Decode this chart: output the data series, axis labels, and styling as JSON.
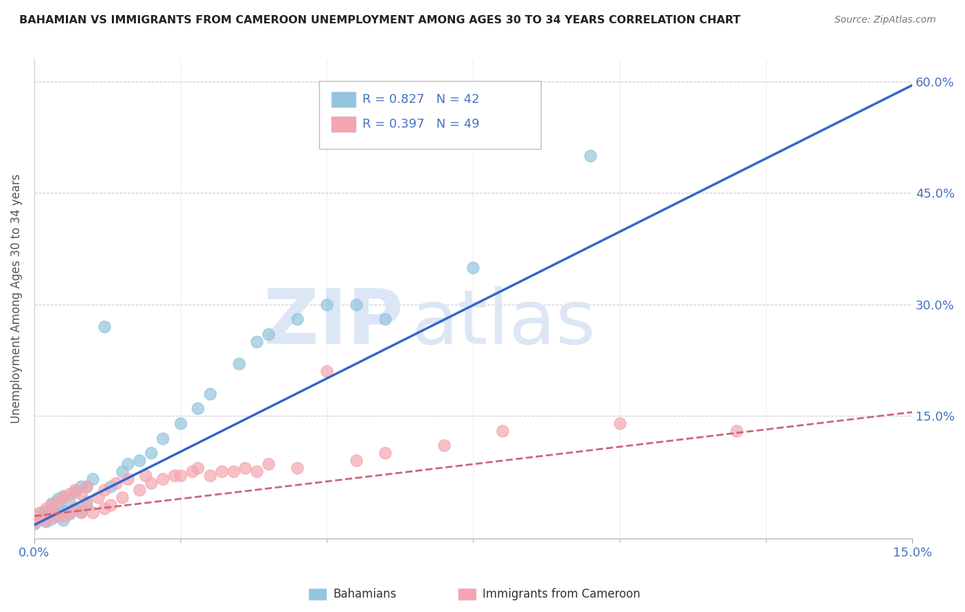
{
  "title": "BAHAMIAN VS IMMIGRANTS FROM CAMEROON UNEMPLOYMENT AMONG AGES 30 TO 34 YEARS CORRELATION CHART",
  "source": "Source: ZipAtlas.com",
  "ylabel": "Unemployment Among Ages 30 to 34 years",
  "right_yticks": [
    0.0,
    0.15,
    0.3,
    0.45,
    0.6
  ],
  "right_yticklabels": [
    "",
    "15.0%",
    "30.0%",
    "45.0%",
    "60.0%"
  ],
  "xmin": 0.0,
  "xmax": 0.15,
  "ymin": -0.015,
  "ymax": 0.63,
  "bahamians_color": "#92c5de",
  "cameroon_color": "#f4a6b0",
  "blue_line_color": "#3366cc",
  "pink_line_color": "#cc6677",
  "legend_R1": "R = 0.827",
  "legend_N1": "N = 42",
  "legend_R2": "R = 0.397",
  "legend_N2": "N = 49",
  "legend_label1": "Bahamians",
  "legend_label2": "Immigrants from Cameroon",
  "watermark": "ZIPatlas",
  "bahamians_x": [
    0.0,
    0.001,
    0.001,
    0.002,
    0.002,
    0.003,
    0.003,
    0.003,
    0.004,
    0.004,
    0.004,
    0.005,
    0.005,
    0.005,
    0.006,
    0.006,
    0.007,
    0.007,
    0.008,
    0.008,
    0.009,
    0.009,
    0.01,
    0.012,
    0.013,
    0.015,
    0.016,
    0.018,
    0.02,
    0.022,
    0.025,
    0.028,
    0.03,
    0.035,
    0.038,
    0.04,
    0.045,
    0.05,
    0.055,
    0.06,
    0.075,
    0.095
  ],
  "bahamians_y": [
    0.005,
    0.01,
    0.018,
    0.008,
    0.022,
    0.012,
    0.025,
    0.032,
    0.015,
    0.028,
    0.038,
    0.01,
    0.022,
    0.042,
    0.018,
    0.035,
    0.025,
    0.048,
    0.022,
    0.055,
    0.035,
    0.055,
    0.065,
    0.27,
    0.055,
    0.075,
    0.085,
    0.09,
    0.1,
    0.12,
    0.14,
    0.16,
    0.18,
    0.22,
    0.25,
    0.26,
    0.28,
    0.3,
    0.3,
    0.28,
    0.35,
    0.5
  ],
  "cameroon_x": [
    0.0,
    0.001,
    0.001,
    0.002,
    0.002,
    0.003,
    0.003,
    0.004,
    0.004,
    0.005,
    0.005,
    0.006,
    0.006,
    0.007,
    0.007,
    0.008,
    0.008,
    0.009,
    0.009,
    0.01,
    0.011,
    0.012,
    0.012,
    0.013,
    0.014,
    0.015,
    0.016,
    0.018,
    0.019,
    0.02,
    0.022,
    0.024,
    0.025,
    0.027,
    0.028,
    0.03,
    0.032,
    0.034,
    0.036,
    0.038,
    0.04,
    0.045,
    0.05,
    0.055,
    0.06,
    0.07,
    0.08,
    0.1,
    0.12
  ],
  "cameroon_y": [
    0.005,
    0.012,
    0.02,
    0.01,
    0.025,
    0.015,
    0.03,
    0.015,
    0.035,
    0.015,
    0.04,
    0.02,
    0.045,
    0.025,
    0.05,
    0.02,
    0.045,
    0.03,
    0.055,
    0.02,
    0.04,
    0.025,
    0.05,
    0.03,
    0.06,
    0.04,
    0.065,
    0.05,
    0.07,
    0.06,
    0.065,
    0.07,
    0.07,
    0.075,
    0.08,
    0.07,
    0.075,
    0.075,
    0.08,
    0.075,
    0.085,
    0.08,
    0.21,
    0.09,
    0.1,
    0.11,
    0.13,
    0.14,
    0.13
  ],
  "blue_line_x": [
    0.0,
    0.15
  ],
  "blue_line_y": [
    0.003,
    0.595
  ],
  "pink_line_x": [
    0.0,
    0.15
  ],
  "pink_line_y": [
    0.015,
    0.155
  ],
  "grid_color": "#cccccc",
  "title_color": "#222222",
  "axis_label_color": "#555555",
  "tick_color": "#4472c4",
  "legend_text_color": "#222222",
  "watermark_color": "#dce6f5",
  "background_color": "#ffffff"
}
